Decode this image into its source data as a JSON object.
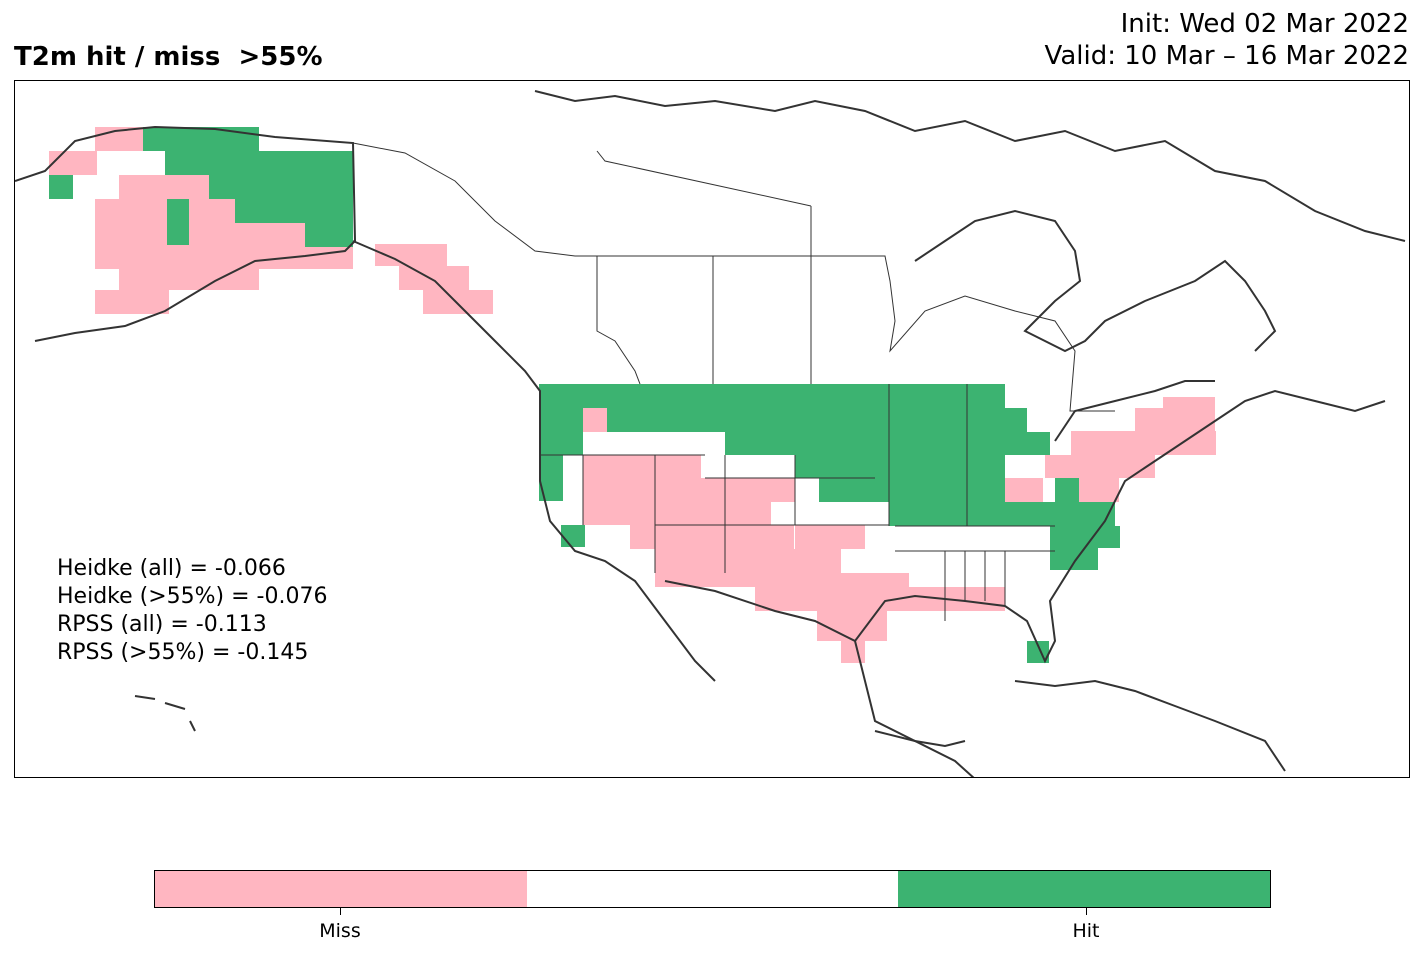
{
  "title": {
    "left": "T2m hit / miss  >55%",
    "init": "Init: Wed 02 Mar 2022",
    "valid": "Valid: 10 Mar – 16 Mar 2022"
  },
  "colors": {
    "miss": "#ffb6c1",
    "neutral": "#ffffff",
    "hit": "#3cb371",
    "coast": "#333333"
  },
  "stats": [
    "Heidke (all) = -0.066",
    "Heidke (>55%) = -0.076",
    "RPSS (all) = -0.113",
    "RPSS (>55%) = -0.145"
  ],
  "legend": {
    "miss_label": "Miss",
    "hit_label": "Hit"
  }
}
